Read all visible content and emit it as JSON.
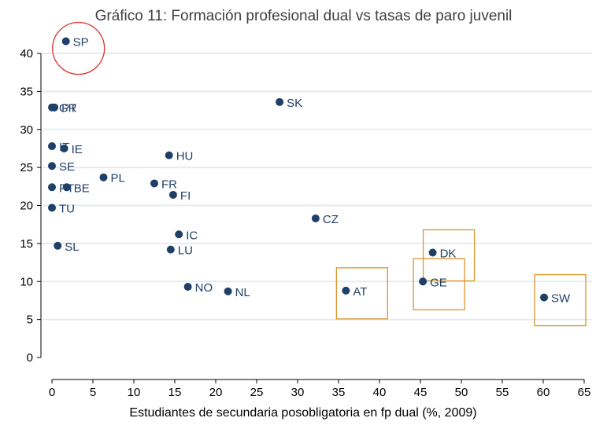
{
  "chart_data": {
    "type": "scatter",
    "title": "Gráfico 11: Formación profesional dual vs tasas de paro juvenil",
    "xlabel": "Estudiantes de secundaria posobligatoria en fp dual (%, 2009)",
    "ylabel": "",
    "xlim": [
      0,
      65
    ],
    "ylim": [
      0,
      40
    ],
    "xticks": [
      0,
      5,
      10,
      15,
      20,
      25,
      30,
      35,
      40,
      45,
      50,
      55,
      60,
      65
    ],
    "yticks": [
      0,
      5,
      10,
      15,
      20,
      25,
      30,
      35,
      40
    ],
    "grid": true,
    "points": [
      {
        "label": "SP",
        "x": 1.7,
        "y": 41.6
      },
      {
        "label": "GR",
        "x": 0.0,
        "y": 32.9
      },
      {
        "label": "PT",
        "x": 0.3,
        "y": 32.9
      },
      {
        "label": "SK",
        "x": 27.8,
        "y": 33.6
      },
      {
        "label": "IT",
        "x": 0.0,
        "y": 27.8
      },
      {
        "label": "IE",
        "x": 1.5,
        "y": 27.5
      },
      {
        "label": "HU",
        "x": 14.3,
        "y": 26.6
      },
      {
        "label": "SE",
        "x": 0.0,
        "y": 25.2
      },
      {
        "label": "PL",
        "x": 6.3,
        "y": 23.7
      },
      {
        "label": "FR",
        "x": 12.5,
        "y": 22.9
      },
      {
        "label": "PT",
        "x": 0.0,
        "y": 22.4
      },
      {
        "label": "BE",
        "x": 1.8,
        "y": 22.4
      },
      {
        "label": "FI",
        "x": 14.8,
        "y": 21.4
      },
      {
        "label": "TU",
        "x": 0.0,
        "y": 19.7
      },
      {
        "label": "CZ",
        "x": 32.2,
        "y": 18.3
      },
      {
        "label": "IC",
        "x": 15.5,
        "y": 16.2
      },
      {
        "label": "SL",
        "x": 0.7,
        "y": 14.7
      },
      {
        "label": "LU",
        "x": 14.5,
        "y": 14.2
      },
      {
        "label": "DK",
        "x": 46.5,
        "y": 13.8
      },
      {
        "label": "GE",
        "x": 45.3,
        "y": 10.0
      },
      {
        "label": "NO",
        "x": 16.6,
        "y": 9.3
      },
      {
        "label": "AT",
        "x": 35.9,
        "y": 8.8
      },
      {
        "label": "NL",
        "x": 21.5,
        "y": 8.7
      },
      {
        "label": "SW",
        "x": 60.1,
        "y": 7.9
      }
    ],
    "highlights": [
      {
        "shape": "circle",
        "color": "#e03030",
        "target": "SP"
      },
      {
        "shape": "square",
        "color": "#d9952b",
        "target": "AT"
      },
      {
        "shape": "square",
        "color": "#d9952b",
        "target": "GE"
      },
      {
        "shape": "square",
        "color": "#d9952b",
        "target": "DK"
      },
      {
        "shape": "square",
        "color": "#d9952b",
        "target": "SW"
      }
    ],
    "colors": {
      "marker": "#1f3f67",
      "grid": "#e6ebef",
      "axis": "#000000"
    }
  }
}
